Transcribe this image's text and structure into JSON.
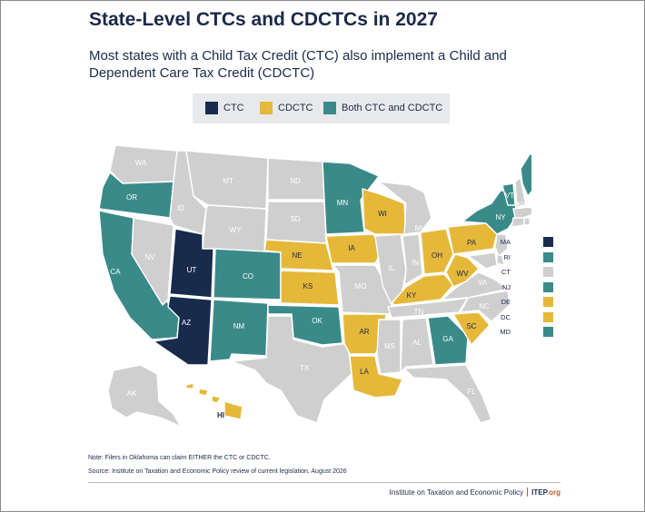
{
  "title": "State-Level CTCs and CDCTCs in 2027",
  "subtitle": "Most states with a Child Tax Credit (CTC) also implement a Child and Dependent Care Tax Credit (CDCTC)",
  "colors": {
    "ctc": "#172b4d",
    "cdctc": "#e6b83a",
    "both": "#3a8a8a",
    "none": "#cfcfcf"
  },
  "legend": [
    {
      "label": "CTC",
      "category": "ctc"
    },
    {
      "label": "CDCTC",
      "category": "cdctc"
    },
    {
      "label": "Both CTC and CDCTC",
      "category": "both"
    }
  ],
  "states": {
    "WA": "none",
    "OR": "both",
    "CA": "both",
    "NV": "none",
    "ID": "none",
    "MT": "none",
    "WY": "none",
    "UT": "ctc",
    "AZ": "ctc",
    "CO": "both",
    "NM": "both",
    "ND": "none",
    "SD": "none",
    "NE": "cdctc",
    "KS": "cdctc",
    "OK": "both",
    "TX": "none",
    "MN": "both",
    "IA": "cdctc",
    "MO": "none",
    "AR": "cdctc",
    "LA": "cdctc",
    "WI": "cdctc",
    "IL": "none",
    "MI": "none",
    "IN": "none",
    "OH": "cdctc",
    "KY": "cdctc",
    "TN": "none",
    "MS": "none",
    "AL": "none",
    "GA": "both",
    "FL": "none",
    "SC": "cdctc",
    "NC": "none",
    "VA": "none",
    "WV": "cdctc",
    "PA": "cdctc",
    "NY": "both",
    "VT": "both",
    "NH": "none",
    "ME": "both",
    "AK": "none",
    "HI": "cdctc"
  },
  "small_states": [
    {
      "label": "MA",
      "category": "ctc"
    },
    {
      "label": "RI",
      "category": "both"
    },
    {
      "label": "CT",
      "category": "none"
    },
    {
      "label": "NJ",
      "category": "both"
    },
    {
      "label": "DE",
      "category": "cdctc"
    },
    {
      "label": "DC",
      "category": "cdctc"
    },
    {
      "label": "MD",
      "category": "both"
    }
  ],
  "note": "Note: Filers in Oklahoma can claim EITHER the CTC or CDCTC.",
  "source": "Source: Institute on Taxation and Economic Policy review of current legislation, August 2026",
  "footer": {
    "org_name": "Institute on Taxation and Economic Policy",
    "brand": "ITEP",
    "brand_suffix": ".org"
  }
}
